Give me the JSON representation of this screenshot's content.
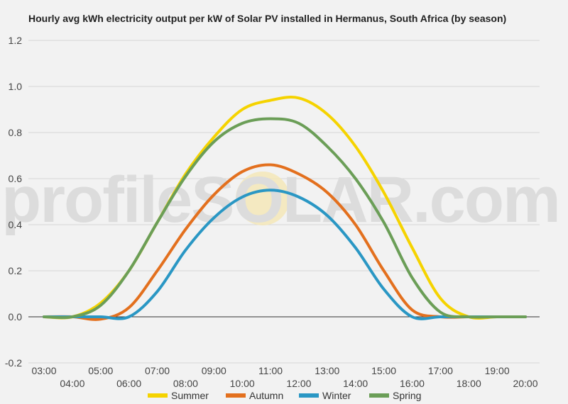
{
  "chart_data": {
    "type": "line",
    "title": "Hourly avg kWh electricity output per kW of Solar PV installed in Hermanus, South Africa (by season)",
    "xlabel": "",
    "ylabel": "",
    "ylim": [
      -0.2,
      1.2
    ],
    "yticks": [
      "1.2",
      "1.0",
      "0.8",
      "0.6",
      "0.4",
      "0.2",
      "0.0",
      "-0.2"
    ],
    "x": [
      3,
      4,
      5,
      6,
      7,
      8,
      9,
      10,
      11,
      12,
      13,
      14,
      15,
      16,
      17,
      18,
      19,
      20
    ],
    "xtick_labels": [
      "03:00",
      "04:00",
      "05:00",
      "06:00",
      "07:00",
      "08:00",
      "09:00",
      "10:00",
      "11:00",
      "12:00",
      "13:00",
      "14:00",
      "15:00",
      "16:00",
      "17:00",
      "18:00",
      "19:00",
      "20:00"
    ],
    "grid": true,
    "legend_position": "bottom",
    "series": [
      {
        "name": "Summer",
        "color": "#f5d300",
        "values": [
          0.0,
          0.0,
          0.06,
          0.2,
          0.41,
          0.62,
          0.78,
          0.9,
          0.94,
          0.95,
          0.88,
          0.74,
          0.54,
          0.3,
          0.08,
          0.0,
          0.0,
          0.0
        ]
      },
      {
        "name": "Autumn",
        "color": "#e3701e",
        "values": [
          0.0,
          0.0,
          -0.01,
          0.04,
          0.2,
          0.38,
          0.53,
          0.63,
          0.66,
          0.62,
          0.54,
          0.4,
          0.2,
          0.03,
          0.0,
          0.0,
          0.0,
          0.0
        ]
      },
      {
        "name": "Winter",
        "color": "#2a97c4",
        "values": [
          0.0,
          0.0,
          0.0,
          0.0,
          0.11,
          0.29,
          0.43,
          0.52,
          0.55,
          0.52,
          0.44,
          0.3,
          0.12,
          0.0,
          0.0,
          0.0,
          0.0,
          0.0
        ]
      },
      {
        "name": "Spring",
        "color": "#6b9e57",
        "values": [
          0.0,
          0.0,
          0.05,
          0.2,
          0.41,
          0.61,
          0.76,
          0.84,
          0.86,
          0.84,
          0.74,
          0.6,
          0.41,
          0.17,
          0.02,
          0.0,
          0.0,
          0.0
        ]
      }
    ]
  },
  "watermark": {
    "text": "profileSOLAR.com"
  }
}
